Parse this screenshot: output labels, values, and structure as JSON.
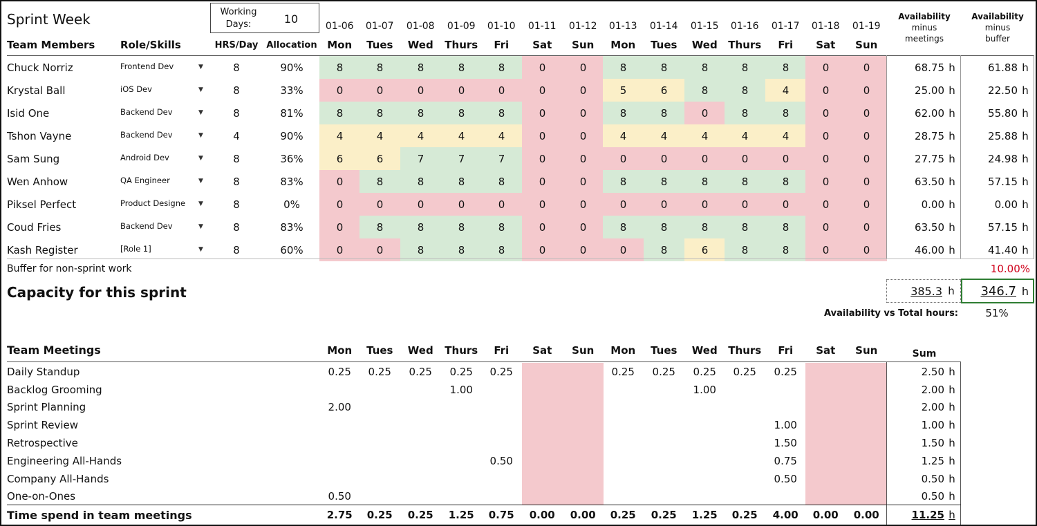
{
  "title": "Sprint Week",
  "working_days": {
    "label_line1": "Working",
    "label_line2": "Days:",
    "value": "10"
  },
  "headers": {
    "team_members": "Team Members",
    "role": "Role/Skills",
    "hrs_day": "HRS/Day",
    "allocation": "Allocation",
    "avail_meetings": [
      "Availability",
      "minus",
      "meetings"
    ],
    "avail_buffer": [
      "Availability",
      "minus",
      "buffer"
    ]
  },
  "dates": [
    "01-06",
    "01-07",
    "01-08",
    "01-09",
    "01-10",
    "01-11",
    "01-12",
    "01-13",
    "01-14",
    "01-15",
    "01-16",
    "01-17",
    "01-18",
    "01-19"
  ],
  "days": [
    "Mon",
    "Tues",
    "Wed",
    "Thurs",
    "Fri",
    "Sat",
    "Sun",
    "Mon",
    "Tues",
    "Wed",
    "Thurs",
    "Fri",
    "Sat",
    "Sun"
  ],
  "members": [
    {
      "name": "Chuck Norriz",
      "role": "Frontend Dev",
      "hrs": "8",
      "alloc": "90%",
      "hours": [
        "8",
        "8",
        "8",
        "8",
        "8",
        "0",
        "0",
        "8",
        "8",
        "8",
        "8",
        "8",
        "0",
        "0"
      ],
      "colors": [
        "g",
        "g",
        "g",
        "g",
        "g",
        "r",
        "r",
        "g",
        "g",
        "g",
        "g",
        "g",
        "r",
        "r"
      ],
      "avail_meet": "68.75",
      "avail_buf": "61.88"
    },
    {
      "name": "Krystal Ball",
      "role": "iOS Dev",
      "hrs": "8",
      "alloc": "33%",
      "hours": [
        "0",
        "0",
        "0",
        "0",
        "0",
        "0",
        "0",
        "5",
        "6",
        "8",
        "8",
        "4",
        "0",
        "0"
      ],
      "colors": [
        "r",
        "r",
        "r",
        "r",
        "r",
        "r",
        "r",
        "y",
        "y",
        "g",
        "g",
        "y",
        "r",
        "r"
      ],
      "avail_meet": "25.00",
      "avail_buf": "22.50"
    },
    {
      "name": "Isid One",
      "role": "Backend Dev",
      "hrs": "8",
      "alloc": "81%",
      "hours": [
        "8",
        "8",
        "8",
        "8",
        "8",
        "0",
        "0",
        "8",
        "8",
        "0",
        "8",
        "8",
        "0",
        "0"
      ],
      "colors": [
        "g",
        "g",
        "g",
        "g",
        "g",
        "r",
        "r",
        "g",
        "g",
        "r",
        "g",
        "g",
        "r",
        "r"
      ],
      "avail_meet": "62.00",
      "avail_buf": "55.80"
    },
    {
      "name": "Tshon Vayne",
      "role": "Backend Dev",
      "hrs": "4",
      "alloc": "90%",
      "hours": [
        "4",
        "4",
        "4",
        "4",
        "4",
        "0",
        "0",
        "4",
        "4",
        "4",
        "4",
        "4",
        "0",
        "0"
      ],
      "colors": [
        "y",
        "y",
        "y",
        "y",
        "y",
        "r",
        "r",
        "y",
        "y",
        "y",
        "y",
        "y",
        "r",
        "r"
      ],
      "avail_meet": "28.75",
      "avail_buf": "25.88"
    },
    {
      "name": "Sam Sung",
      "role": "Android Dev",
      "hrs": "8",
      "alloc": "36%",
      "hours": [
        "6",
        "6",
        "7",
        "7",
        "7",
        "0",
        "0",
        "0",
        "0",
        "0",
        "0",
        "0",
        "0",
        "0"
      ],
      "colors": [
        "y",
        "y",
        "g",
        "g",
        "g",
        "r",
        "r",
        "r",
        "r",
        "r",
        "r",
        "r",
        "r",
        "r"
      ],
      "avail_meet": "27.75",
      "avail_buf": "24.98"
    },
    {
      "name": "Wen Anhow",
      "role": "QA Engineer",
      "hrs": "8",
      "alloc": "83%",
      "hours": [
        "0",
        "8",
        "8",
        "8",
        "8",
        "0",
        "0",
        "8",
        "8",
        "8",
        "8",
        "8",
        "0",
        "0"
      ],
      "colors": [
        "r",
        "g",
        "g",
        "g",
        "g",
        "r",
        "r",
        "g",
        "g",
        "g",
        "g",
        "g",
        "r",
        "r"
      ],
      "avail_meet": "63.50",
      "avail_buf": "57.15"
    },
    {
      "name": "Piksel Perfect",
      "role": "Product Designe",
      "hrs": "8",
      "alloc": "0%",
      "hours": [
        "0",
        "0",
        "0",
        "0",
        "0",
        "0",
        "0",
        "0",
        "0",
        "0",
        "0",
        "0",
        "0",
        "0"
      ],
      "colors": [
        "r",
        "r",
        "r",
        "r",
        "r",
        "r",
        "r",
        "r",
        "r",
        "r",
        "r",
        "r",
        "r",
        "r"
      ],
      "avail_meet": "0.00",
      "avail_buf": "0.00"
    },
    {
      "name": "Coud Fries",
      "role": "Backend Dev",
      "hrs": "8",
      "alloc": "83%",
      "hours": [
        "0",
        "8",
        "8",
        "8",
        "8",
        "0",
        "0",
        "8",
        "8",
        "8",
        "8",
        "8",
        "0",
        "0"
      ],
      "colors": [
        "r",
        "g",
        "g",
        "g",
        "g",
        "r",
        "r",
        "g",
        "g",
        "g",
        "g",
        "g",
        "r",
        "r"
      ],
      "avail_meet": "63.50",
      "avail_buf": "57.15"
    },
    {
      "name": "Kash Register",
      "role": "[Role 1]",
      "hrs": "8",
      "alloc": "60%",
      "hours": [
        "0",
        "0",
        "8",
        "8",
        "8",
        "0",
        "0",
        "0",
        "8",
        "6",
        "8",
        "8",
        "0",
        "0"
      ],
      "colors": [
        "r",
        "r",
        "g",
        "g",
        "g",
        "r",
        "r",
        "r",
        "g",
        "y",
        "g",
        "g",
        "r",
        "r"
      ],
      "avail_meet": "46.00",
      "avail_buf": "41.40"
    }
  ],
  "unit": "h",
  "buffer": {
    "label": "Buffer for non-sprint work",
    "value": "10.00%"
  },
  "capacity": {
    "label": "Capacity for this sprint",
    "meetings_total": "385.3",
    "buffer_total": "346.7"
  },
  "avail_vs_total": {
    "label": "Availability vs Total hours:",
    "value": "51%"
  },
  "meetings": {
    "title": "Team Meetings",
    "sum_label": "Sum",
    "rows": [
      {
        "name": "Daily Standup",
        "values": [
          "0.25",
          "0.25",
          "0.25",
          "0.25",
          "0.25",
          "",
          "",
          "0.25",
          "0.25",
          "0.25",
          "0.25",
          "0.25",
          "",
          ""
        ],
        "sum": "2.50"
      },
      {
        "name": "Backlog Grooming",
        "values": [
          "",
          "",
          "",
          "1.00",
          "",
          "",
          "",
          "",
          "",
          "1.00",
          "",
          "",
          "",
          ""
        ],
        "sum": "2.00"
      },
      {
        "name": "Sprint Planning",
        "values": [
          "2.00",
          "",
          "",
          "",
          "",
          "",
          "",
          "",
          "",
          "",
          "",
          "",
          "",
          ""
        ],
        "sum": "2.00"
      },
      {
        "name": "Sprint Review",
        "values": [
          "",
          "",
          "",
          "",
          "",
          "",
          "",
          "",
          "",
          "",
          "",
          "1.00",
          "",
          ""
        ],
        "sum": "1.00"
      },
      {
        "name": "Retrospective",
        "values": [
          "",
          "",
          "",
          "",
          "",
          "",
          "",
          "",
          "",
          "",
          "",
          "1.50",
          "",
          ""
        ],
        "sum": "1.50"
      },
      {
        "name": "Engineering All-Hands",
        "values": [
          "",
          "",
          "",
          "",
          "0.50",
          "",
          "",
          "",
          "",
          "",
          "",
          "0.75",
          "",
          ""
        ],
        "sum": "1.25"
      },
      {
        "name": "Company All-Hands",
        "values": [
          "",
          "",
          "",
          "",
          "",
          "",
          "",
          "",
          "",
          "",
          "",
          "0.50",
          "",
          ""
        ],
        "sum": "0.50"
      },
      {
        "name": "One-on-Ones",
        "values": [
          "0.50",
          "",
          "",
          "",
          "",
          "",
          "",
          "",
          "",
          "",
          "",
          "",
          "",
          ""
        ],
        "sum": "0.50"
      }
    ],
    "total": {
      "label": "Time spend in team meetings",
      "values": [
        "2.75",
        "0.25",
        "0.25",
        "1.25",
        "0.75",
        "0.00",
        "0.00",
        "0.25",
        "0.25",
        "1.25",
        "0.25",
        "4.00",
        "0.00",
        "0.00"
      ],
      "sum": "11.25"
    }
  },
  "colors": {
    "green": "#d6ead6",
    "red": "#f4c9cd",
    "yellow": "#fbefc8",
    "capacity_border": "#2e7d32",
    "buffer_text": "#d0021b"
  }
}
